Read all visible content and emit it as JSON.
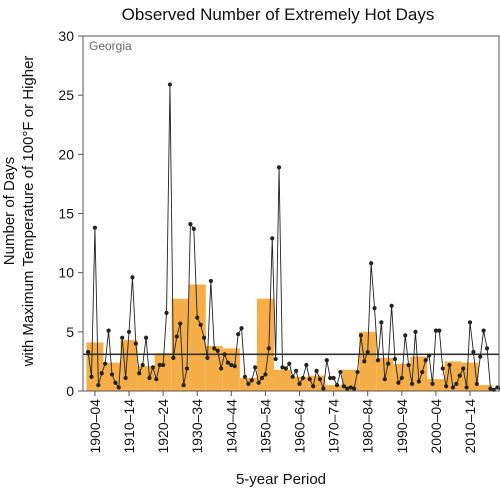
{
  "chart_data": {
    "type": "bar",
    "title": "Observed Number of Extremely Hot Days",
    "annotation": "Georgia",
    "xlabel": "5-year Period",
    "ylabel_line1": "Number of Days",
    "ylabel_line2": "with Maximum Temperature of 100°F or Higher",
    "ylim": [
      0,
      30
    ],
    "y_ticks": [
      "0",
      "5",
      "10",
      "15",
      "20",
      "25",
      "30"
    ],
    "x_tick_labels": [
      "1900–04",
      "1910–14",
      "1920–24",
      "1930–34",
      "1940–44",
      "1950–54",
      "1960–64",
      "1970–74",
      "1980–84",
      "1990–94",
      "2000–04",
      "2010–14"
    ],
    "reference_line": 3.1,
    "series": [
      {
        "kind": "bars",
        "categories": [
          "1900–04",
          "1905–09",
          "1910–14",
          "1915–19",
          "1920–24",
          "1925–29",
          "1930–34",
          "1935–39",
          "1940–44",
          "1945–49",
          "1950–54",
          "1955–59",
          "1960–64",
          "1965–69",
          "1970–74",
          "1975–79",
          "1980–84",
          "1985–89",
          "1990–94",
          "1995–99",
          "2000–04",
          "2005–09",
          "2010–14",
          "2015–18"
        ],
        "values": [
          4.1,
          2.4,
          4.3,
          2.1,
          3.2,
          7.8,
          9.0,
          3.8,
          3.6,
          1.1,
          7.8,
          1.8,
          1.2,
          1.3,
          0.5,
          1.8,
          5.0,
          2.8,
          2.3,
          2.9,
          1.0,
          2.5,
          2.4,
          0.5
        ]
      },
      {
        "kind": "line",
        "start_year": 1900,
        "values": [
          3.3,
          1.2,
          13.8,
          0.5,
          1.5,
          2.3,
          5.1,
          1.4,
          0.7,
          0.3,
          4.5,
          1.1,
          5.0,
          9.6,
          4.0,
          1.5,
          2.2,
          4.5,
          1.1,
          2.0,
          1.0,
          2.2,
          2.2,
          6.6,
          25.9,
          2.8,
          4.6,
          5.7,
          0.5,
          1.9,
          14.1,
          13.7,
          6.2,
          5.6,
          4.5,
          2.8,
          9.3,
          3.6,
          3.4,
          1.9,
          3.1,
          2.4,
          2.2,
          2.1,
          4.8,
          5.3,
          1.2,
          0.6,
          0.9,
          2.0,
          0.7,
          1.1,
          1.4,
          3.6,
          12.9,
          2.7,
          18.9,
          2.0,
          1.9,
          2.3,
          1.2,
          1.7,
          0.6,
          1.1,
          2.2,
          1.0,
          0.4,
          1.7,
          1.0,
          0.2,
          2.6,
          1.1,
          1.1,
          0.5,
          1.6,
          0.4,
          0.2,
          0.3,
          0.2,
          1.6,
          4.7,
          2.5,
          3.3,
          10.8,
          7.0,
          2.6,
          5.8,
          1.0,
          2.3,
          7.2,
          2.7,
          0.7,
          1.1,
          4.7,
          2.2,
          0.6,
          5.0,
          0.8,
          1.6,
          2.6,
          3.0,
          0.6,
          5.1,
          5.1,
          1.9,
          0.4,
          2.2,
          0.3,
          0.6,
          1.3,
          1.9,
          0.3,
          5.8,
          3.3,
          0.6,
          2.9,
          5.1,
          3.6,
          0.2,
          0.1,
          0.3,
          0.2,
          0.7,
          0.5,
          0.6,
          0.3,
          0.5
        ]
      }
    ],
    "colors": {
      "bar": "#f5ae48",
      "line": "#222222",
      "reference_line": "#333333"
    }
  }
}
